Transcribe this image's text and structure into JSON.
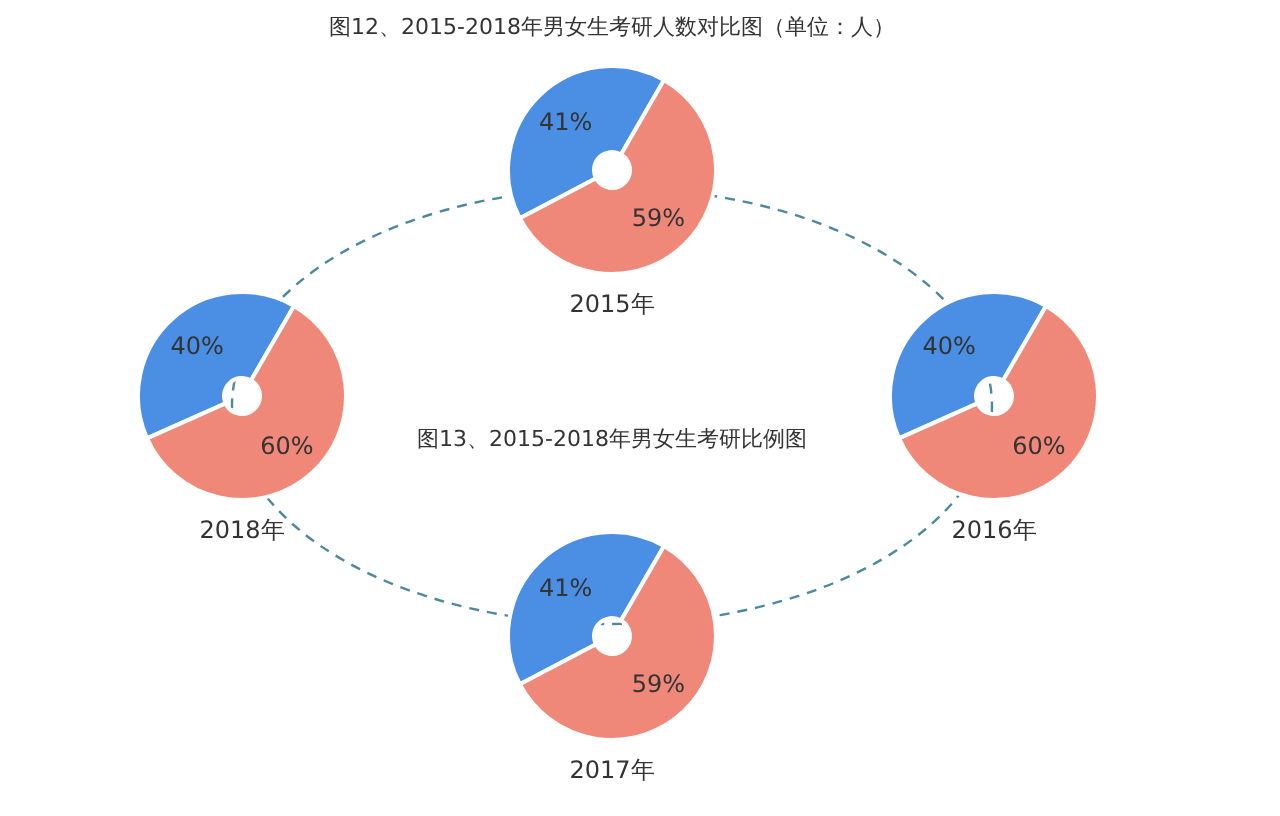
{
  "chart_data": [
    {
      "type": "donut",
      "title": "2015年",
      "categories": [
        null,
        null
      ],
      "values": [
        41,
        59
      ],
      "colors": [
        "#4a8fe3",
        "#f0887a"
      ],
      "value_labels": [
        "41%",
        "59%"
      ],
      "annotations": [
        "图12、2015-2018年男女生考研人数对比图（单位：人）",
        "图13、2015-2018年男女生考研比例图"
      ]
    },
    {
      "type": "donut",
      "title": "2018年",
      "categories": [
        null,
        null
      ],
      "values": [
        40,
        60
      ],
      "colors": [
        "#4a8fe3",
        "#f0887a"
      ],
      "value_labels": [
        "40%",
        "60%"
      ]
    },
    {
      "type": "donut",
      "title": "2016年",
      "categories": [
        null,
        null
      ],
      "values": [
        40,
        60
      ],
      "colors": [
        "#4a8fe3",
        "#f0887a"
      ],
      "value_labels": [
        "40%",
        "60%"
      ]
    },
    {
      "type": "donut",
      "title": "2017年",
      "categories": [
        null,
        null
      ],
      "values": [
        41,
        59
      ],
      "colors": [
        "#4a8fe3",
        "#f0887a"
      ],
      "value_labels": [
        "41%",
        "59%"
      ]
    }
  ]
}
